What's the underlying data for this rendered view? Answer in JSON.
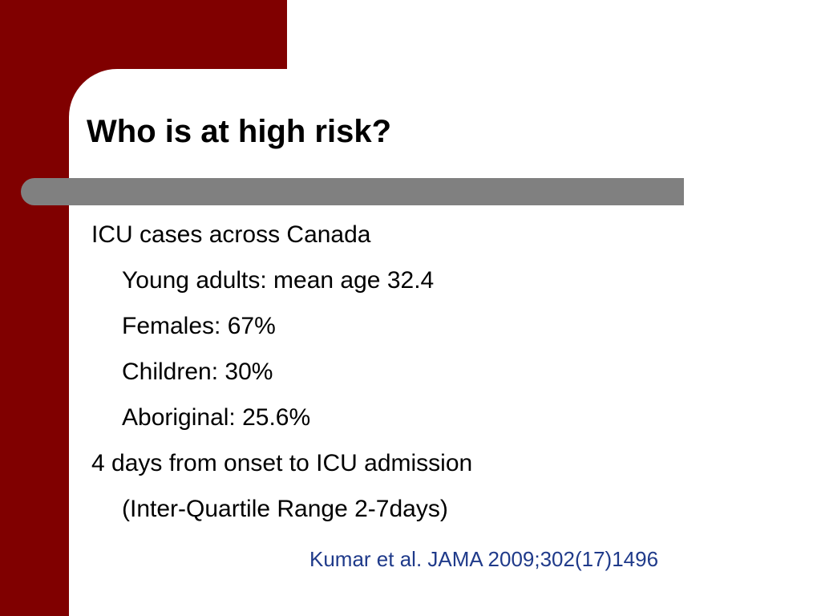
{
  "slide": {
    "title": "Who is at high risk?",
    "bullets": [
      {
        "text": "ICU cases across Canada",
        "level": 1
      },
      {
        "text": "Young adults: mean age 32.4",
        "level": 2
      },
      {
        "text": "Females: 67%",
        "level": 2
      },
      {
        "text": "Children: 30%",
        "level": 2
      },
      {
        "text": "Aboriginal: 25.6%",
        "level": 2
      },
      {
        "text": "4 days from onset to ICU admission",
        "level": 1
      },
      {
        "text": "(Inter-Quartile Range 2-7days)",
        "level": 2
      }
    ],
    "citation": "Kumar et al. JAMA 2009;302(17)1496"
  },
  "colors": {
    "accent": "#800000",
    "divider": "#808080",
    "citation": "#1f3a8a",
    "text": "#000000"
  }
}
